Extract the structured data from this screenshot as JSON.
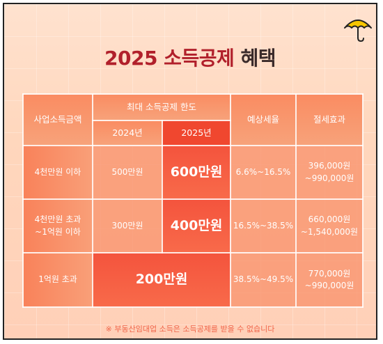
{
  "title": {
    "main": "2025 소득공제",
    "sub": "혜택"
  },
  "table": {
    "headers": {
      "business_income": "사업소득금액",
      "max_deduction": "최대 소득공제 한도",
      "year_2024": "2024년",
      "year_2025": "2025년",
      "expected_tax_rate": "예상세율",
      "tax_saving": "절세효과"
    },
    "rows": [
      {
        "income": "4천만원 이하",
        "d2024": "500만원",
        "d2025": "600만원",
        "rate": "6.6%~16.5%",
        "saving": [
          "396,000원",
          "~990,000원"
        ]
      },
      {
        "income": [
          "4천만원 초과",
          "~1억원 이하"
        ],
        "d2024": "300만원",
        "d2025": "400만원",
        "rate": "16.5%~38.5%",
        "saving": [
          "660,000원",
          "~1,540,000원"
        ]
      },
      {
        "income": "1억원 초과",
        "merged": "200만원",
        "rate": "38.5%~49.5%",
        "saving": [
          "770,000원",
          "~990,000원"
        ]
      }
    ]
  },
  "note": "※ 부동산임대업 소득은 소득공제를 받을 수 없습니다",
  "icons": {
    "logo": "umbrella-icon"
  },
  "colors": {
    "title": "#b1202b",
    "highlight": "#f0472f",
    "umbrella": "#f7c600"
  }
}
